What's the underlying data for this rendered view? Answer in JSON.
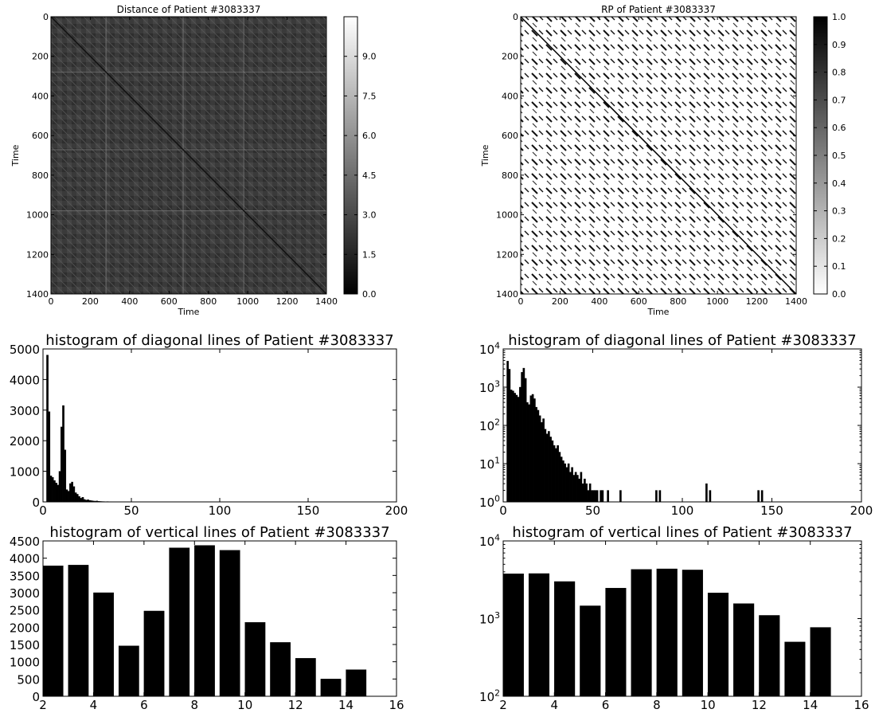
{
  "chart_data": [
    {
      "id": "distance",
      "type": "heatmap",
      "title": "Distance  of Patient #3083337",
      "xlabel": "Time",
      "ylabel": "Time",
      "xlim": [
        0,
        1400
      ],
      "ylim": [
        1400,
        0
      ],
      "x_ticks": [
        "0",
        "200",
        "400",
        "600",
        "800",
        "1000",
        "1200",
        "1400"
      ],
      "y_ticks": [
        "0",
        "200",
        "400",
        "600",
        "800",
        "1000",
        "1200",
        "1400"
      ],
      "colormap": "gray",
      "colorbar_range": [
        0,
        10.5
      ],
      "colorbar_ticks": [
        "0.0",
        "1.5",
        "3.0",
        "4.5",
        "6.0",
        "7.5",
        "9.0"
      ],
      "colorbar_values": [
        0,
        1.5,
        3.0,
        4.5,
        6.0,
        7.5,
        9.0
      ]
    },
    {
      "id": "rp",
      "type": "heatmap",
      "title": "RP  of Patient #3083337",
      "xlabel": "Time",
      "ylabel": "Time",
      "xlim": [
        0,
        1400
      ],
      "ylim": [
        1400,
        0
      ],
      "x_ticks": [
        "0",
        "200",
        "400",
        "600",
        "800",
        "1000",
        "1200",
        "1400"
      ],
      "y_ticks": [
        "0",
        "200",
        "400",
        "600",
        "800",
        "1000",
        "1200",
        "1400"
      ],
      "colormap": "gray_r",
      "colorbar_range": [
        0,
        1.0
      ],
      "colorbar_ticks": [
        "0.0",
        "0.1",
        "0.2",
        "0.3",
        "0.4",
        "0.5",
        "0.6",
        "0.7",
        "0.8",
        "0.9",
        "1.0"
      ],
      "colorbar_values": [
        0,
        0.1,
        0.2,
        0.3,
        0.4,
        0.5,
        0.6,
        0.7,
        0.8,
        0.9,
        1.0
      ]
    },
    {
      "id": "diag_linear",
      "type": "bar",
      "title": "histogram of diagonal lines  of Patient #3083337",
      "xlim": [
        0,
        200
      ],
      "ylim": [
        0,
        5000
      ],
      "yscale": "linear",
      "x_ticks": [
        "0",
        "50",
        "100",
        "150",
        "200"
      ],
      "x_tick_values": [
        0,
        50,
        100,
        150,
        200
      ],
      "y_ticks": [
        "0",
        "1000",
        "2000",
        "3000",
        "4000",
        "5000"
      ],
      "y_tick_values": [
        0,
        1000,
        2000,
        3000,
        4000,
        5000
      ],
      "bar_width": 1,
      "x": [
        2,
        3,
        4,
        5,
        6,
        7,
        8,
        9,
        10,
        11,
        12,
        13,
        14,
        15,
        16,
        17,
        18,
        19,
        20,
        21,
        22,
        23,
        24,
        25,
        26,
        27,
        28,
        29,
        30,
        31,
        32,
        33,
        34,
        35,
        36,
        37,
        38,
        39,
        40,
        41,
        42,
        43,
        44,
        45,
        46,
        47,
        48,
        49,
        50,
        51,
        52,
        53,
        54,
        55,
        56,
        57,
        58,
        59,
        60,
        61,
        62,
        63,
        64,
        65,
        83,
        85,
        87,
        89,
        94,
        113,
        115,
        117,
        136,
        142,
        144,
        199
      ],
      "values": [
        4800,
        2950,
        850,
        800,
        700,
        620,
        550,
        1000,
        2450,
        3150,
        1700,
        400,
        350,
        600,
        650,
        500,
        300,
        250,
        180,
        120,
        150,
        80,
        60,
        70,
        50,
        40,
        30,
        25,
        30,
        20,
        15,
        12,
        10,
        8,
        10,
        6,
        8,
        5,
        6,
        5,
        4,
        6,
        3,
        4,
        3,
        2,
        3,
        2,
        2,
        2,
        2,
        1,
        2,
        2,
        1,
        1,
        2,
        1,
        1,
        1,
        1,
        1,
        1,
        2,
        1,
        2,
        2,
        1,
        1,
        3,
        2,
        1,
        1,
        2,
        2,
        1
      ]
    },
    {
      "id": "diag_log",
      "type": "bar",
      "title": "histogram of diagonal lines  of Patient #3083337",
      "xlim": [
        0,
        200
      ],
      "ylim": [
        1,
        10000
      ],
      "yscale": "log",
      "x_ticks": [
        "0",
        "50",
        "100",
        "150",
        "200"
      ],
      "x_tick_values": [
        0,
        50,
        100,
        150,
        200
      ],
      "y_ticks": [
        "10^0",
        "10^1",
        "10^2",
        "10^3",
        "10^4"
      ],
      "y_tick_values": [
        1,
        10,
        100,
        1000,
        10000
      ],
      "bar_width": 1,
      "x": [
        2,
        3,
        4,
        5,
        6,
        7,
        8,
        9,
        10,
        11,
        12,
        13,
        14,
        15,
        16,
        17,
        18,
        19,
        20,
        21,
        22,
        23,
        24,
        25,
        26,
        27,
        28,
        29,
        30,
        31,
        32,
        33,
        34,
        35,
        36,
        37,
        38,
        39,
        40,
        41,
        42,
        43,
        44,
        45,
        46,
        47,
        48,
        49,
        50,
        51,
        52,
        53,
        54,
        55,
        56,
        57,
        58,
        59,
        60,
        61,
        62,
        63,
        64,
        65,
        83,
        85,
        87,
        89,
        94,
        113,
        115,
        117,
        136,
        142,
        144,
        199
      ],
      "values": [
        4800,
        2950,
        850,
        800,
        700,
        620,
        550,
        1000,
        2450,
        3150,
        1700,
        400,
        350,
        600,
        650,
        500,
        300,
        250,
        180,
        120,
        150,
        80,
        60,
        70,
        50,
        40,
        30,
        25,
        30,
        20,
        15,
        12,
        10,
        8,
        10,
        6,
        8,
        5,
        6,
        5,
        4,
        6,
        3,
        4,
        3,
        2,
        3,
        2,
        2,
        2,
        2,
        1,
        2,
        2,
        1,
        1,
        2,
        1,
        1,
        1,
        1,
        1,
        1,
        2,
        1,
        2,
        2,
        1,
        1,
        3,
        2,
        1,
        1,
        2,
        2,
        1
      ]
    },
    {
      "id": "vert_linear",
      "type": "bar",
      "title": "histogram of vertical lines  of Patient #3083337",
      "xlim": [
        2,
        16
      ],
      "ylim": [
        0,
        4500
      ],
      "yscale": "linear",
      "x_ticks": [
        "2",
        "4",
        "6",
        "8",
        "10",
        "12",
        "14",
        "16"
      ],
      "x_tick_values": [
        2,
        4,
        6,
        8,
        10,
        12,
        14,
        16
      ],
      "y_ticks": [
        "0",
        "500",
        "1000",
        "1500",
        "2000",
        "2500",
        "3000",
        "3500",
        "4000",
        "4500"
      ],
      "y_tick_values": [
        0,
        500,
        1000,
        1500,
        2000,
        2500,
        3000,
        3500,
        4000,
        4500
      ],
      "bar_width": 0.8,
      "x": [
        2,
        3,
        4,
        5,
        6,
        7,
        8,
        9,
        10,
        11,
        12,
        13,
        14
      ],
      "values": [
        3780,
        3800,
        3000,
        1460,
        2470,
        4300,
        4370,
        4230,
        2140,
        1560,
        1100,
        500,
        770
      ]
    },
    {
      "id": "vert_log",
      "type": "bar",
      "title": "histogram of vertical lines  of Patient #3083337",
      "xlim": [
        2,
        16
      ],
      "ylim": [
        100,
        10000
      ],
      "yscale": "log",
      "x_ticks": [
        "2",
        "4",
        "6",
        "8",
        "10",
        "12",
        "14",
        "16"
      ],
      "x_tick_values": [
        2,
        4,
        6,
        8,
        10,
        12,
        14,
        16
      ],
      "y_ticks": [
        "10^2",
        "10^3",
        "10^4"
      ],
      "y_tick_values": [
        100,
        1000,
        10000
      ],
      "bar_width": 0.8,
      "x": [
        2,
        3,
        4,
        5,
        6,
        7,
        8,
        9,
        10,
        11,
        12,
        13,
        14
      ],
      "values": [
        3780,
        3800,
        3000,
        1460,
        2470,
        4300,
        4370,
        4230,
        2140,
        1560,
        1100,
        500,
        770
      ]
    }
  ]
}
